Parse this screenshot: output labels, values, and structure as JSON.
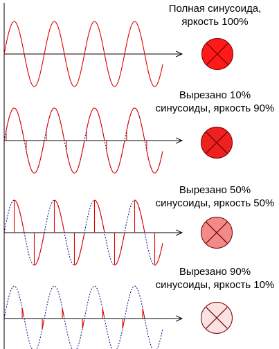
{
  "panels": [
    {
      "caption": [
        "Полная синусоида,",
        "яркость 100%"
      ],
      "cut_fraction": 0.0,
      "brightness_fraction": 1.0,
      "lamp_color": "#ff1a1a",
      "lamp_icon": "lamp-x-icon"
    },
    {
      "caption": [
        "Вырезано 10%",
        "синусоиды, яркость 90%"
      ],
      "cut_fraction": 0.1,
      "brightness_fraction": 0.9,
      "lamp_color": "#ee2020",
      "lamp_icon": "lamp-x-icon"
    },
    {
      "caption": [
        "Вырезано 50%",
        "синусоиды, яркость 50%"
      ],
      "cut_fraction": 0.5,
      "brightness_fraction": 0.5,
      "lamp_color": "#f28a8a",
      "lamp_icon": "lamp-x-icon"
    },
    {
      "caption": [
        "Вырезано 90%",
        "синусоиды, яркость 10%"
      ],
      "cut_fraction": 0.9,
      "brightness_fraction": 0.1,
      "lamp_color": "#fbe3e3",
      "lamp_icon": "lamp-x-icon"
    }
  ],
  "colors": {
    "wave": "#e00000",
    "reference_wave": "#000080",
    "axis": "#000000"
  }
}
